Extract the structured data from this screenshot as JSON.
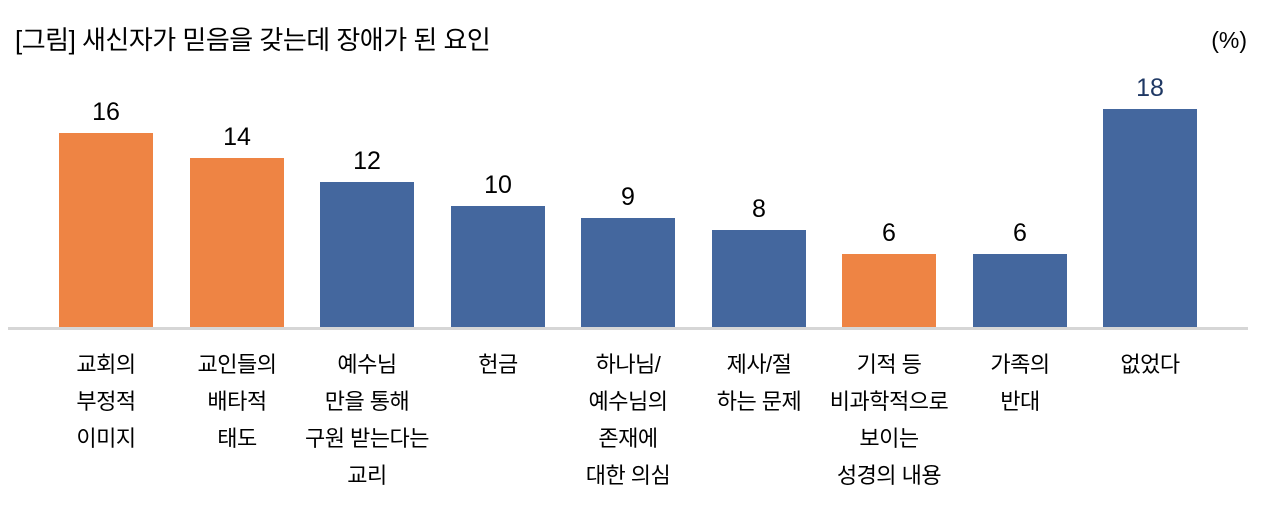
{
  "header": {
    "title": "[그림] 새신자가 믿음을 갖는데 장애가 된 요인",
    "unit_label": "(%)"
  },
  "colors": {
    "bar_orange": "#EE8444",
    "bar_blue": "#44679E",
    "value_label_default": "#000000",
    "value_label_emphasis": "#1F3864",
    "axis_line": "#D6D6D6"
  },
  "chart_data": {
    "type": "bar",
    "title": "[그림] 새신자가 믿음을 갖는데 장애가 된 요인",
    "unit": "%",
    "categories": [
      "교회의\n부정적\n이미지",
      "교인들의\n배타적\n태도",
      "예수님\n만을 통해\n구원 받는다는\n교리",
      "헌금",
      "하나님/\n예수님의\n존재에\n대한 의심",
      "제사/절\n하는 문제",
      "기적 등\n비과학적으로\n보이는\n성경의 내용",
      "가족의\n반대",
      "없었다"
    ],
    "values": [
      16,
      14,
      12,
      10,
      9,
      8,
      6,
      6,
      18
    ],
    "bar_color_keys": [
      "orange",
      "orange",
      "blue",
      "blue",
      "blue",
      "blue",
      "orange",
      "blue",
      "blue"
    ],
    "emphasized_value_index": 8,
    "ylim": [
      0,
      20
    ],
    "grid": false,
    "legend": "none",
    "value_labels": "above-bars",
    "xlabel": "",
    "ylabel": ""
  }
}
